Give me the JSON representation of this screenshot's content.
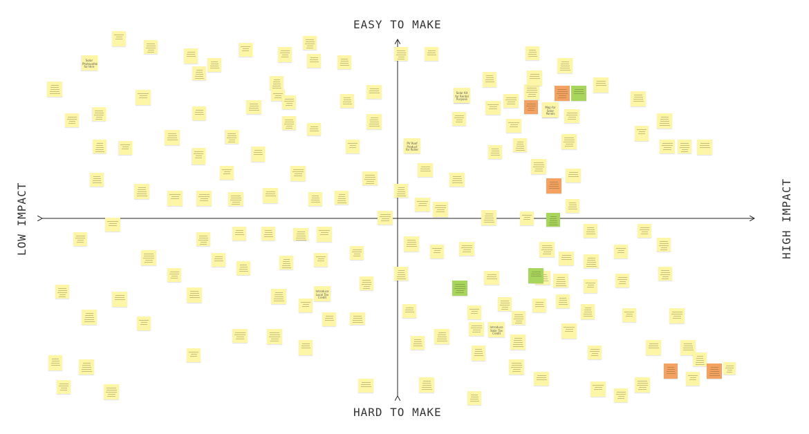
{
  "axes": {
    "top": "EASY TO MAKE",
    "bottom": "HARD TO MAKE",
    "left": "LOW IMPACT",
    "right": "HIGH IMPACT"
  },
  "colors": {
    "note_yellow": "#fdf6a6",
    "note_orange": "#f4a261",
    "note_green": "#a8d65c",
    "axis": "#222222"
  },
  "labeled_notes": [
    {
      "text": "Solar Photovoltaic for Hire"
    },
    {
      "text": "Solar Kit for Rental Purpose"
    },
    {
      "text": "PV Roof Product for Roller"
    },
    {
      "text": "Map for Solar Panels"
    },
    {
      "text": "Introduce Solar Tax Credit"
    },
    {
      "text": "Introduce Local Tax Credit"
    }
  ]
}
